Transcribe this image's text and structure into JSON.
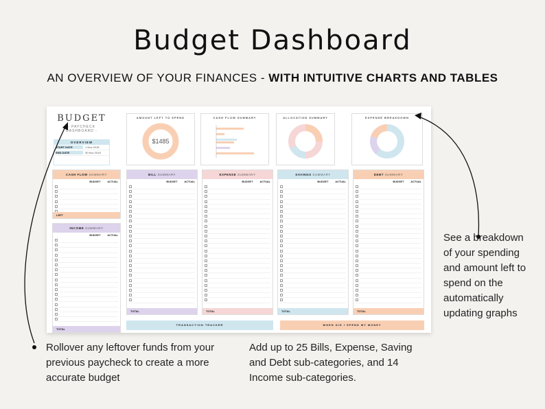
{
  "header": {
    "title": "Budget Dashboard",
    "subtitle_plain": "AN OVERVIEW OF YOUR FINANCES - ",
    "subtitle_bold": "WITH INTUITIVE CHARTS AND TABLES"
  },
  "sheet": {
    "brand_title": "BUDGET",
    "brand_sub": "- PAYCHECK DASHBOARD -",
    "overview": {
      "title": "OVERVIEW",
      "start_label": "START DATE",
      "start_value": "1 Nov 2018",
      "end_label": "END DATE",
      "end_value": "30 Nov 2018"
    },
    "cards": {
      "amount_left": {
        "title": "AMOUNT LEFT TO SPEND",
        "value": "$1485"
      },
      "cash_flow": {
        "title": "CASH FLOW SUMMARY"
      },
      "allocation": {
        "title": "ALLOCATION SUMMARY"
      },
      "expense": {
        "title": "EXPENSE BREAKDOWN"
      }
    },
    "panels": {
      "cash_flow": {
        "title": "CASH FLOW",
        "suffix": "SUMMARY",
        "total_label": "LEFT"
      },
      "bill": {
        "title": "BILL",
        "suffix": "SUMMARY",
        "total_label": "TOTAL"
      },
      "expense": {
        "title": "EXPENSE",
        "suffix": "SUMMARY",
        "total_label": "TOTAL"
      },
      "savings": {
        "title": "SAVINGS",
        "suffix": "SUMMARY",
        "total_label": "TOTAL"
      },
      "debt": {
        "title": "DEBT",
        "suffix": "SUMMARY",
        "total_label": "TOTAL"
      },
      "income": {
        "title": "INCOME",
        "suffix": "SUMMARY",
        "total_label": "TOTAL"
      }
    },
    "col_budget": "BUDGET",
    "col_actual": "ACTUAL",
    "bottom_left": "TRANSACTION TRACKER",
    "bottom_right": "WHEN DID I SPEND MY MONEY"
  },
  "notes": {
    "side": "See a breakdown of your spending and amount left to spend on the automatically updating graphs",
    "foot_left": "Rollover any leftover funds from your previous paycheck to create a more accurate budget",
    "foot_right": "Add up to 25 Bills, Expense, Saving and Debt sub-categories, and 14 Income sub-categories."
  },
  "colors": {
    "peach": "#f9cfb4",
    "lilac": "#ddd3ec",
    "blue": "#cfe6ef",
    "pink": "#f6d6d6"
  }
}
